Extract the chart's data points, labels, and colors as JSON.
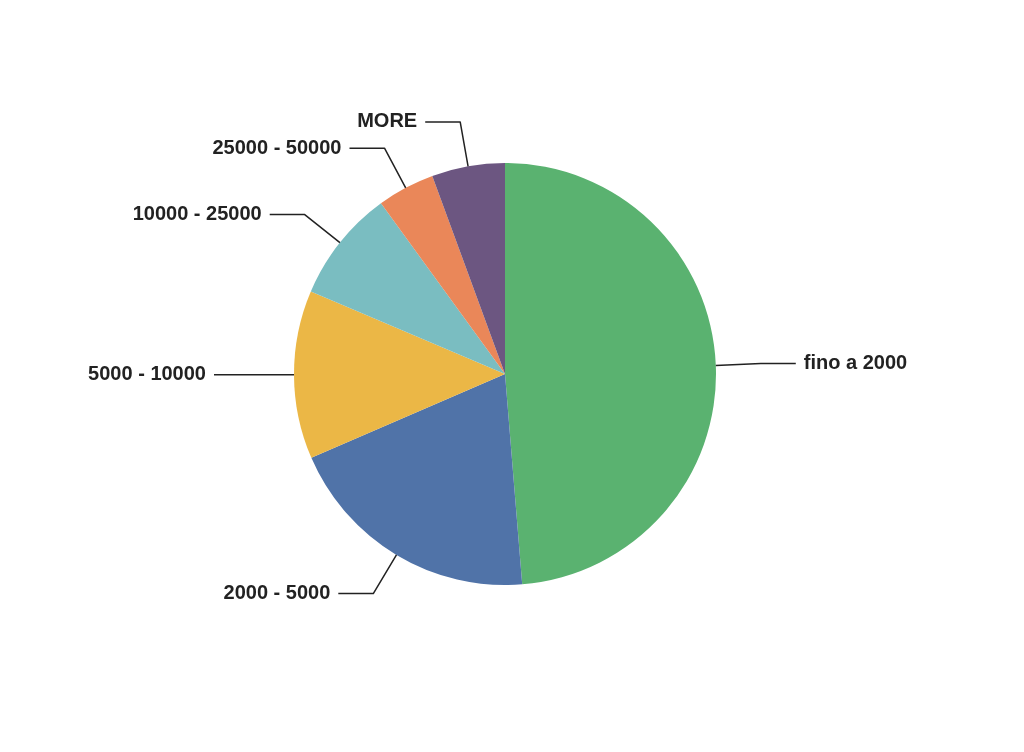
{
  "chart_data": {
    "type": "pie",
    "categories": [
      "fino a 2000",
      "2000 - 5000",
      "5000 - 10000",
      "10000 - 25000",
      "25000 - 50000",
      "MORE"
    ],
    "values": [
      48.7,
      19.8,
      12.9,
      8.6,
      4.4,
      5.6
    ],
    "colors": [
      "#5ab270",
      "#5073a8",
      "#ebb746",
      "#7abdc1",
      "#ea8759",
      "#6c5681"
    ],
    "legend": false
  }
}
